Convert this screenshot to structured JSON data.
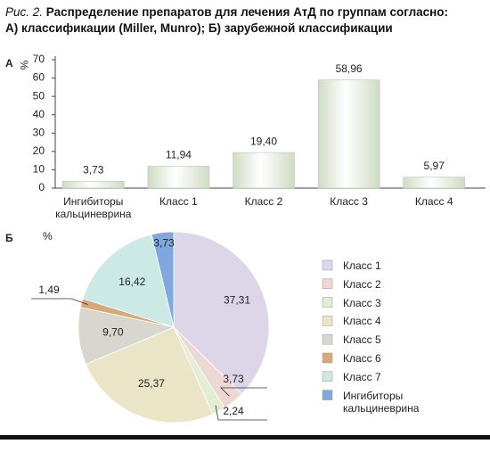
{
  "figure": {
    "label": "Рис. 2.",
    "title": [
      "Распределение препаратов для лечения АтД по группам согласно:",
      "А) классификации (Miller, Munro); Б) зарубежной классификации"
    ]
  },
  "chart_data": [
    {
      "type": "bar",
      "panel": "А",
      "y_label": "%",
      "categories": [
        "Ингибиторы кальциневрина",
        "Класс 1",
        "Класс 2",
        "Класс 3",
        "Класс 4"
      ],
      "values": [
        3.73,
        11.94,
        19.4,
        58.96,
        5.97
      ],
      "value_labels": [
        "3,73",
        "11,94",
        "19,40",
        "58,96",
        "5,97"
      ],
      "color": "#cfdcc4",
      "ylim": [
        0,
        70
      ],
      "yticks": [
        0,
        10,
        20,
        30,
        40,
        50,
        60,
        70
      ],
      "grid": false
    },
    {
      "type": "pie",
      "panel": "Б",
      "unit": "%",
      "categories": [
        "Класс 1",
        "Класс 2",
        "Класс 3",
        "Класс 4",
        "Класс 5",
        "Класс 6",
        "Класс 7",
        "Ингибиторы кальциневрина"
      ],
      "values": [
        37.31,
        3.73,
        2.24,
        25.37,
        9.7,
        1.49,
        16.42,
        3.73
      ],
      "value_labels": [
        "37,31",
        "3,73",
        "2,24",
        "25,37",
        "9,70",
        "1,49",
        "16,42",
        "3,73"
      ],
      "colors": [
        "#ddd6e8",
        "#edd8d4",
        "#e2eed3",
        "#e9e5c6",
        "#d7d7d0",
        "#d8a878",
        "#cbe9e5",
        "#7ea8de"
      ],
      "legend": "right"
    }
  ]
}
